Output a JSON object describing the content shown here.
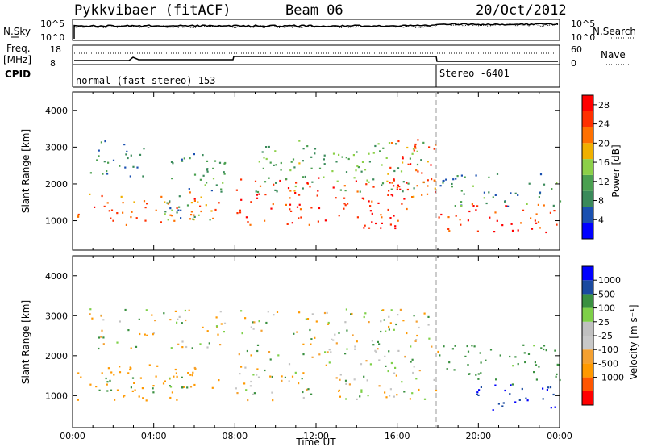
{
  "header": {
    "station": "Pykkvibaer (fitACF)",
    "beam": "Beam 06",
    "date": "20/Oct/2012"
  },
  "noise_panel": {
    "left_label": "N.Sky",
    "right_label": "N.Search",
    "left_ticks": [
      "10^5",
      "10^0"
    ],
    "right_ticks": [
      "10^5",
      "10^0"
    ]
  },
  "freq_panel": {
    "left_label_1": "Freq.",
    "left_label_2": "[MHz]",
    "right_label": "Nave",
    "left_ticks": [
      "18",
      "8"
    ],
    "right_ticks": [
      "60",
      "0"
    ]
  },
  "cpid_panel": {
    "label": "CPID",
    "segments": [
      {
        "start_hour": 0,
        "text": "normal (fast stereo) 153"
      },
      {
        "start_hour": 18,
        "text": "Stereo -6401"
      }
    ]
  },
  "colors": {
    "power_scale": [
      "#0000ff",
      "#1a50b0",
      "#3a8a5a",
      "#4aa050",
      "#8cd048",
      "#f0b000",
      "#ff7000",
      "#ff3000",
      "#ff0000"
    ],
    "velocity_scale": [
      "#ff0000",
      "#ff5500",
      "#ff9900",
      "#f4a030",
      "#c8c8c8",
      "#c0c0c0",
      "#7ed048",
      "#3a9040",
      "#1a4aa0",
      "#0000ff"
    ],
    "ground_scatter": "#c0c0c0"
  },
  "chart_data": [
    {
      "type": "heatmap",
      "panel": "power",
      "ylabel": "Slant Range [km]",
      "xlim": [
        0,
        24
      ],
      "ylim": [
        200,
        4500
      ],
      "yticks": [
        "1000",
        "2000",
        "3000",
        "4000"
      ],
      "colorbar": {
        "label": "Power [dB]",
        "ticks": [
          "4",
          "8",
          "12",
          "16",
          "20",
          "24",
          "28"
        ],
        "range": [
          0,
          30
        ]
      },
      "regions": [
        {
          "t0": 0.2,
          "t1": 7.2,
          "r0": 900,
          "r1": 1800,
          "value": 22
        },
        {
          "t0": 0.5,
          "t1": 3.5,
          "r0": 2200,
          "r1": 3200,
          "value": 8
        },
        {
          "t0": 4.5,
          "t1": 7.5,
          "r0": 1000,
          "r1": 3000,
          "value": 10
        },
        {
          "t0": 8.0,
          "t1": 16.5,
          "r0": 800,
          "r1": 2200,
          "value": 26
        },
        {
          "t0": 9.0,
          "t1": 17.5,
          "r0": 1800,
          "r1": 3200,
          "value": 12
        },
        {
          "t0": 15.5,
          "t1": 18.0,
          "r0": 1200,
          "r1": 3300,
          "value": 24
        },
        {
          "t0": 18.0,
          "t1": 24.0,
          "r0": 700,
          "r1": 1500,
          "value": 26
        },
        {
          "t0": 18.0,
          "t1": 24.0,
          "r0": 1400,
          "r1": 2300,
          "value": 9
        }
      ]
    },
    {
      "type": "heatmap",
      "panel": "velocity",
      "xlabel": "Time UT",
      "ylabel": "Slant Range [km]",
      "xlim": [
        0,
        24
      ],
      "ylim": [
        200,
        4500
      ],
      "xticks": [
        "00:00",
        "04:00",
        "08:00",
        "12:00",
        "16:00",
        "20:00",
        "00:00"
      ],
      "yticks": [
        "1000",
        "2000",
        "3000",
        "4000"
      ],
      "colorbar": {
        "label": "Velocity [m s⁻¹]",
        "ticks": [
          "1000",
          "500",
          "100",
          "25",
          "-25",
          "-100",
          "-500",
          "-1000"
        ]
      },
      "regions": [
        {
          "t0": 0.2,
          "t1": 7.2,
          "r0": 900,
          "r1": 1800,
          "value": -150
        },
        {
          "t0": 1.0,
          "t1": 6.0,
          "r0": 1100,
          "r1": 1500,
          "value": 150
        },
        {
          "t0": 0.5,
          "t1": 7.5,
          "r0": 2200,
          "r1": 3200,
          "value": 0
        },
        {
          "t0": 8.0,
          "t1": 18.0,
          "r0": 900,
          "r1": 3200,
          "value": 0
        },
        {
          "t0": 18.0,
          "t1": 24.0,
          "r0": 1300,
          "r1": 2300,
          "value": 150
        },
        {
          "t0": 19.5,
          "t1": 24.0,
          "r0": 600,
          "r1": 1300,
          "value": 700
        }
      ]
    }
  ]
}
